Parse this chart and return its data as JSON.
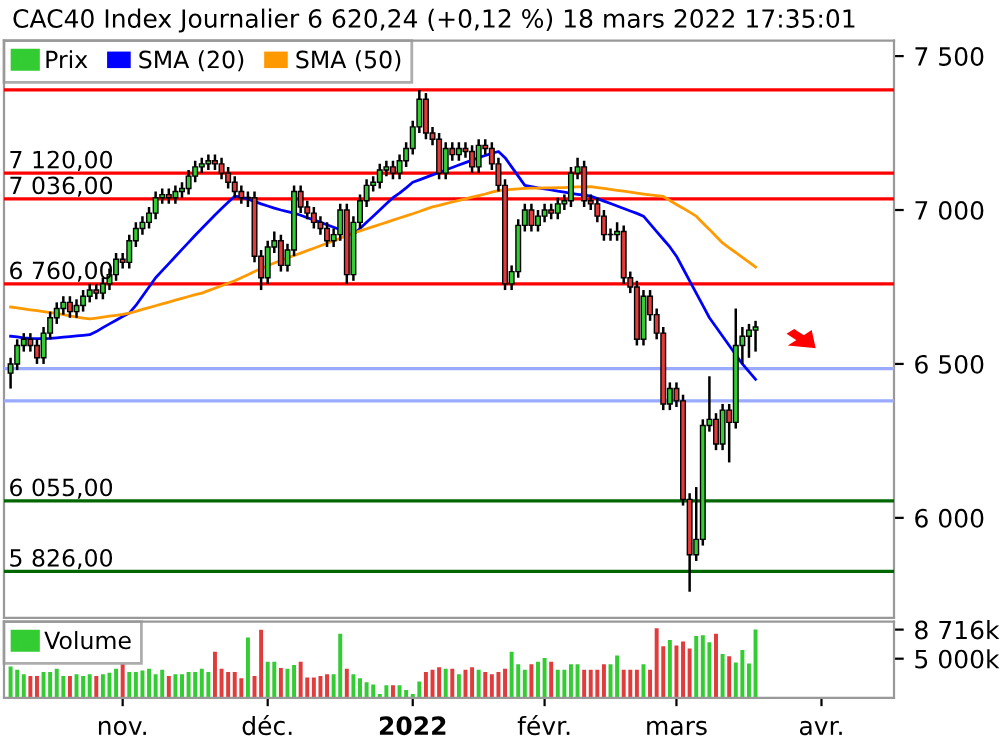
{
  "chart_data": [
    {
      "type": "candlestick",
      "title": "CAC40 Index Journalier 6 620,24 (+0,12 %) 18 mars 2022 17:35:01",
      "categories": [
        null,
        null,
        null,
        null,
        null,
        null,
        null,
        null,
        null,
        null,
        null,
        null,
        null,
        null,
        null,
        null,
        null,
        null,
        null,
        null,
        null,
        null,
        null,
        null,
        null,
        null,
        null,
        null,
        null,
        null,
        null,
        null,
        null,
        null,
        null,
        null,
        null,
        null,
        null,
        null,
        null,
        null,
        null,
        null,
        null,
        null,
        null,
        null,
        null,
        null,
        null,
        null,
        null,
        null,
        null,
        null,
        null,
        null,
        null,
        null,
        null,
        null,
        null,
        null,
        null,
        null,
        null,
        null,
        null,
        null,
        null,
        null,
        null,
        null,
        null,
        null,
        null,
        null,
        null,
        null,
        null,
        null,
        null,
        null,
        null,
        null,
        null,
        null,
        null,
        null,
        null,
        null,
        null,
        null,
        null,
        null,
        null,
        null,
        null,
        null,
        null,
        null,
        null,
        null,
        null,
        null,
        null,
        null,
        null,
        null,
        null,
        null,
        null,
        null,
        null,
        null,
        null,
        null,
        null,
        null,
        null,
        null,
        null,
        null,
        null,
        null,
        null,
        null,
        null,
        null,
        null,
        null,
        null,
        null
      ],
      "tick_labels": "y",
      "legend": "top left",
      "ylim": [
        5675,
        7550
      ],
      "yticks": [
        {
          "value": 6000,
          "label": "6 000"
        },
        {
          "value": 6500,
          "label": "6 500"
        },
        {
          "value": 7000,
          "label": "7 000"
        },
        {
          "value": 7500,
          "label": "7 500"
        }
      ],
      "ref_lines": [
        {
          "axis": "y",
          "value": 7390,
          "color": "#ff0000"
        },
        {
          "axis": "y",
          "value": 7120,
          "label": "7 120,00",
          "color": "#ff0000"
        },
        {
          "axis": "y",
          "value": 7036,
          "label": "7 036,00",
          "color": "#ff0000"
        },
        {
          "axis": "y",
          "value": 6760,
          "label": "6 760,00",
          "color": "#ff0000"
        },
        {
          "axis": "y",
          "value": 6055,
          "label": "6 055,00",
          "color": "#006600"
        },
        {
          "axis": "y",
          "value": 5826,
          "label": "5 826,00",
          "color": "#006600"
        },
        {
          "axis": "y",
          "value": 6485,
          "color": "#99aaff"
        },
        {
          "axis": "y",
          "value": 6380,
          "color": "#99aaff"
        }
      ],
      "series": [
        {
          "name": "Prix",
          "type": "candlestick",
          "colors": [
            "#33cc33",
            "#33cc33",
            "#33cc33",
            "#e23b3b",
            "#e23b3b",
            "#33cc33",
            "#33cc33",
            "#33cc33",
            "#33cc33",
            "#e23b3b",
            "#33cc33",
            "#33cc33",
            "#33cc33",
            "#e23b3b",
            "#33cc33",
            "#33cc33",
            "#33cc33",
            "#e23b3b",
            "#33cc33",
            "#33cc33",
            "#33cc33",
            "#33cc33",
            "#33cc33",
            "#33cc33",
            "#e23b3b",
            "#33cc33",
            "#33cc33",
            "#33cc33",
            "#33cc33",
            "#33cc33",
            "#33cc33",
            "#e23b3b",
            "#e23b3b",
            "#e23b3b",
            "#e23b3b",
            "#e23b3b",
            "#33cc33",
            "#e23b3b",
            "#e23b3b",
            "#33cc33",
            "#33cc33",
            "#e23b3b",
            "#33cc33",
            "#33cc33",
            "#e23b3b",
            "#e23b3b",
            "#e23b3b",
            "#e23b3b",
            "#e23b3b",
            "#33cc33",
            "#33cc33",
            "#e23b3b",
            "#33cc33",
            "#33cc33",
            "#33cc33",
            "#33cc33",
            "#33cc33",
            "#33cc33",
            "#e23b3b",
            "#33cc33",
            "#33cc33",
            "#33cc33",
            "#33cc33",
            "#e23b3b",
            "#e23b3b",
            "#e23b3b",
            "#33cc33",
            "#e23b3b",
            "#33cc33",
            "#e23b3b",
            "#e23b3b",
            "#33cc33",
            "#e23b3b",
            "#e23b3b",
            "#e23b3b",
            "#e23b3b",
            "#33cc33",
            "#33cc33",
            "#33cc33",
            "#e23b3b",
            "#33cc33",
            "#33cc33",
            "#e23b3b",
            "#33cc33",
            "#33cc33",
            "#33cc33",
            "#33cc33",
            "#e23b3b",
            "#e23b3b",
            "#e23b3b",
            "#e23b3b",
            "#33cc33",
            "#33cc33",
            "#e23b3b",
            "#e23b3b",
            "#e23b3b",
            "#33cc33",
            "#e23b3b",
            "#e23b3b",
            "#e23b3b",
            "#33cc33",
            "#e23b3b",
            "#e23b3b",
            "#e23b3b",
            "#33cc33",
            "#33cc33",
            "#33cc33",
            "#e23b3b",
            "#33cc33",
            "#e23b3b",
            "#33cc33",
            "#33cc33",
            "#33cc33",
            "#33cc33",
            null,
            null,
            null,
            null,
            null,
            null,
            null,
            null,
            null,
            null,
            null,
            null,
            null,
            null,
            null,
            null,
            null,
            null,
            null,
            null
          ],
          "ohlc": [
            [
              6470,
              6520,
              6420,
              6500
            ],
            [
              6500,
              6580,
              6480,
              6560
            ],
            [
              6560,
              6600,
              6540,
              6580
            ],
            [
              6580,
              6600,
              6540,
              6560
            ],
            [
              6560,
              6580,
              6500,
              6520
            ],
            [
              6520,
              6620,
              6500,
              6600
            ],
            [
              6600,
              6670,
              6580,
              6650
            ],
            [
              6650,
              6700,
              6630,
              6680
            ],
            [
              6680,
              6720,
              6660,
              6700
            ],
            [
              6700,
              6720,
              6650,
              6670
            ],
            [
              6670,
              6710,
              6650,
              6690
            ],
            [
              6690,
              6740,
              6670,
              6720
            ],
            [
              6720,
              6760,
              6700,
              6740
            ],
            [
              6740,
              6760,
              6710,
              6730
            ],
            [
              6730,
              6780,
              6710,
              6760
            ],
            [
              6760,
              6810,
              6740,
              6790
            ],
            [
              6790,
              6860,
              6770,
              6840
            ],
            [
              6840,
              6860,
              6810,
              6830
            ],
            [
              6830,
              6920,
              6810,
              6900
            ],
            [
              6900,
              6960,
              6880,
              6940
            ],
            [
              6940,
              6980,
              6920,
              6960
            ],
            [
              6960,
              7010,
              6940,
              6990
            ],
            [
              6990,
              7060,
              6970,
              7040
            ],
            [
              7040,
              7070,
              7020,
              7050
            ],
            [
              7050,
              7070,
              7020,
              7040
            ],
            [
              7040,
              7080,
              7020,
              7060
            ],
            [
              7060,
              7090,
              7040,
              7070
            ],
            [
              7070,
              7130,
              7050,
              7110
            ],
            [
              7110,
              7160,
              7090,
              7140
            ],
            [
              7140,
              7170,
              7120,
              7150
            ],
            [
              7150,
              7180,
              7130,
              7160
            ],
            [
              7160,
              7180,
              7130,
              7150
            ],
            [
              7150,
              7170,
              7100,
              7120
            ],
            [
              7120,
              7140,
              7070,
              7090
            ],
            [
              7090,
              7110,
              7040,
              7060
            ],
            [
              7060,
              7080,
              7020,
              7040
            ],
            [
              7040,
              7060,
              7010,
              7040
            ],
            [
              7040,
              7060,
              6830,
              6850
            ],
            [
              6850,
              6870,
              6740,
              6780
            ],
            [
              6780,
              6900,
              6760,
              6880
            ],
            [
              6880,
              6930,
              6860,
              6900
            ],
            [
              6900,
              6920,
              6800,
              6820
            ],
            [
              6820,
              6890,
              6800,
              6870
            ],
            [
              6870,
              7080,
              6850,
              7060
            ],
            [
              7060,
              7080,
              6990,
              7010
            ],
            [
              7010,
              7030,
              6970,
              6990
            ],
            [
              6990,
              7010,
              6940,
              6960
            ],
            [
              6960,
              6980,
              6920,
              6940
            ],
            [
              6940,
              6960,
              6880,
              6900
            ],
            [
              6900,
              6940,
              6880,
              6920
            ],
            [
              6920,
              7020,
              6900,
              7000
            ],
            [
              7000,
              7020,
              6760,
              6790
            ],
            [
              6790,
              6980,
              6770,
              6960
            ],
            [
              6960,
              7050,
              6940,
              7030
            ],
            [
              7030,
              7100,
              7010,
              7080
            ],
            [
              7080,
              7110,
              7060,
              7090
            ],
            [
              7090,
              7150,
              7070,
              7130
            ],
            [
              7130,
              7160,
              7110,
              7140
            ],
            [
              7140,
              7160,
              7100,
              7120
            ],
            [
              7120,
              7180,
              7100,
              7160
            ],
            [
              7160,
              7220,
              7140,
              7200
            ],
            [
              7200,
              7290,
              7180,
              7270
            ],
            [
              7270,
              7390,
              7250,
              7360
            ],
            [
              7360,
              7380,
              7230,
              7250
            ],
            [
              7250,
              7270,
              7210,
              7230
            ],
            [
              7230,
              7250,
              7100,
              7120
            ],
            [
              7120,
              7220,
              7100,
              7200
            ],
            [
              7200,
              7220,
              7160,
              7180
            ],
            [
              7180,
              7220,
              7160,
              7200
            ],
            [
              7200,
              7220,
              7170,
              7190
            ],
            [
              7190,
              7210,
              7120,
              7140
            ],
            [
              7140,
              7230,
              7120,
              7210
            ],
            [
              7210,
              7230,
              7180,
              7200
            ],
            [
              7200,
              7220,
              7130,
              7150
            ],
            [
              7150,
              7170,
              7060,
              7080
            ],
            [
              7080,
              7100,
              6740,
              6760
            ],
            [
              6760,
              6820,
              6740,
              6800
            ],
            [
              6800,
              6970,
              6780,
              6950
            ],
            [
              6950,
              7020,
              6930,
              7000
            ],
            [
              7000,
              7020,
              6930,
              6950
            ],
            [
              6950,
              7000,
              6930,
              6980
            ],
            [
              6980,
              7020,
              6960,
              7000
            ],
            [
              7000,
              7020,
              6970,
              6990
            ],
            [
              6990,
              7040,
              6970,
              7020
            ],
            [
              7020,
              7050,
              7000,
              7030
            ],
            [
              7030,
              7140,
              7010,
              7120
            ],
            [
              7120,
              7170,
              7100,
              7140
            ],
            [
              7140,
              7160,
              7010,
              7030
            ],
            [
              7030,
              7050,
              7000,
              7020
            ],
            [
              7020,
              7040,
              6960,
              6980
            ],
            [
              6980,
              7000,
              6900,
              6920
            ],
            [
              6920,
              6940,
              6900,
              6920
            ],
            [
              6920,
              6960,
              6900,
              6930
            ],
            [
              6930,
              6950,
              6760,
              6780
            ],
            [
              6780,
              6800,
              6730,
              6750
            ],
            [
              6750,
              6770,
              6560,
              6580
            ],
            [
              6580,
              6740,
              6560,
              6720
            ],
            [
              6720,
              6740,
              6640,
              6660
            ],
            [
              6660,
              6680,
              6580,
              6600
            ],
            [
              6600,
              6620,
              6350,
              6370
            ],
            [
              6370,
              6440,
              6350,
              6420
            ],
            [
              6420,
              6440,
              6360,
              6380
            ],
            [
              6380,
              6400,
              6040,
              6060
            ],
            [
              6060,
              6080,
              5760,
              5880
            ],
            [
              5880,
              6100,
              5860,
              5930
            ],
            [
              5930,
              6320,
              5910,
              6300
            ],
            [
              6300,
              6460,
              6280,
              6320
            ],
            [
              6320,
              6340,
              6220,
              6240
            ],
            [
              6240,
              6370,
              6220,
              6350
            ],
            [
              6350,
              6370,
              6180,
              6310
            ],
            [
              6310,
              6680,
              6290,
              6560
            ],
            [
              6560,
              6620,
              6500,
              6590
            ],
            [
              6590,
              6630,
              6520,
              6610
            ],
            [
              6610,
              6640,
              6540,
              6620
            ],
            null,
            null,
            null,
            null,
            null,
            null,
            null,
            null,
            null,
            null,
            null,
            null,
            null,
            null,
            null,
            null,
            null,
            null,
            null,
            null
          ]
        },
        {
          "name": "SMA (20)",
          "type": "line",
          "color": "#0000ff",
          "values": [
            6590,
            6588,
            6585,
            6583,
            6582,
            6582,
            6583,
            6585,
            6587,
            6589,
            6591,
            6593,
            6595,
            6605,
            6618,
            6630,
            6642,
            6654,
            6665,
            6690,
            6720,
            6750,
            6780,
            6803,
            6826,
            6849,
            6872,
            6895,
            6918,
            6940,
            6962,
            6984,
            7005,
            7025,
            7045,
            7042,
            7035,
            7028,
            7020,
            7013,
            7006,
            7000,
            6995,
            6990,
            6983,
            6975,
            6968,
            6960,
            6952,
            6944,
            6936,
            null,
            6920,
            6940,
            6960,
            6980,
            7000,
            7020,
            7040,
            7055,
            7072,
            7090,
            7098,
            7106,
            7114,
            7122,
            7130,
            7138,
            7146,
            7154,
            7162,
            7170,
            7177,
            7184,
            7190,
            7170,
            7140,
            7110,
            7080,
            7076,
            7072,
            7069,
            7065,
            7061,
            7058,
            7054,
            7051,
            7048,
            7045,
            7037,
            7029,
            7021,
            7013,
            7005,
            6997,
            6989,
            6980,
            6955,
            6930,
            6905,
            6880,
            6850,
            6810,
            6770,
            6730,
            6690,
            6650,
            6620,
            6590,
            6560,
            6530,
            6500,
            6475,
            6450,
            null,
            null,
            null,
            null,
            null,
            null,
            null,
            null,
            null,
            null,
            null,
            null,
            null,
            null,
            null,
            null,
            null,
            null,
            null,
            null
          ]
        },
        {
          "name": "SMA (50)",
          "type": "line",
          "color": "#ff9900",
          "values": [
            6685,
            6682,
            6679,
            6676,
            6673,
            6670,
            6667,
            6664,
            6660,
            6656,
            6652,
            6649,
            6646,
            6649,
            6652,
            6655,
            6658,
            6661,
            6665,
            6671,
            6677,
            6683,
            6689,
            6695,
            6701,
            6707,
            6713,
            6719,
            6725,
            6730,
            6738,
            6746,
            6754,
            6762,
            6770,
            6780,
            6790,
            6800,
            6810,
            6819,
            6828,
            6836,
            6844,
            6852,
            6860,
            6868,
            6876,
            6884,
            6892,
            6900,
            6908,
            6917,
            6925,
            6932,
            6939,
            6946,
            6953,
            6960,
            6967,
            6974,
            6981,
            6988,
            6995,
            7003,
            7010,
            7015,
            7021,
            7026,
            7031,
            7036,
            7042,
            7047,
            7052,
            7058,
            7063,
            7065,
            7067,
            7069,
            7070,
            7071,
            7071,
            7072,
            7072,
            7073,
            7073,
            7074,
            7075,
            7075,
            7076,
            7073,
            7070,
            7067,
            7064,
            7061,
            7058,
            7055,
            7052,
            7049,
            7047,
            7044,
            7031,
            7018,
            7006,
            6993,
            6980,
            6958,
            6937,
            6915,
            6893,
            6877,
            6862,
            6846,
            6831,
            6815,
            null,
            null,
            null,
            null,
            null,
            null,
            null,
            null,
            null,
            null,
            null,
            null,
            null,
            null,
            null,
            null,
            null,
            null,
            null,
            null
          ]
        }
      ]
    },
    {
      "type": "bar",
      "legend": "top left",
      "categories": [
        null,
        null,
        null,
        null,
        null,
        null,
        null,
        null,
        null,
        null,
        null,
        null,
        null,
        null,
        null,
        null,
        null,
        "nov.",
        null,
        null,
        null,
        null,
        null,
        null,
        null,
        null,
        null,
        null,
        null,
        null,
        null,
        null,
        null,
        null,
        null,
        null,
        null,
        null,
        null,
        "déc.",
        null,
        null,
        null,
        null,
        null,
        null,
        null,
        null,
        null,
        null,
        null,
        null,
        null,
        null,
        null,
        null,
        null,
        null,
        null,
        null,
        null,
        "2022",
        null,
        null,
        null,
        null,
        null,
        null,
        null,
        null,
        null,
        null,
        null,
        null,
        null,
        null,
        null,
        null,
        null,
        null,
        null,
        "févr.",
        null,
        null,
        null,
        null,
        null,
        null,
        null,
        null,
        null,
        null,
        null,
        null,
        null,
        null,
        null,
        null,
        null,
        null,
        null,
        "mars",
        null,
        null,
        null,
        null,
        null,
        null,
        null,
        null,
        null,
        null,
        null,
        null,
        null,
        null,
        null,
        null,
        null,
        null,
        null,
        null,
        null,
        "avr.",
        null,
        null,
        null,
        null,
        null,
        null,
        null,
        null,
        null,
        null
      ],
      "ylim": [
        0,
        9740
      ],
      "yticks": [
        {
          "value": 5000,
          "label": "5 000k"
        },
        {
          "value": 8716,
          "label": "8 716k"
        }
      ],
      "series": [
        {
          "name": "Volume",
          "colors": [
            "#33cc33",
            "#33cc33",
            "#33cc33",
            "#e23b3b",
            "#e23b3b",
            "#33cc33",
            "#33cc33",
            "#33cc33",
            "#33cc33",
            "#e23b3b",
            "#33cc33",
            "#33cc33",
            "#33cc33",
            "#e23b3b",
            "#33cc33",
            "#33cc33",
            "#33cc33",
            "#e23b3b",
            "#33cc33",
            "#33cc33",
            "#33cc33",
            "#33cc33",
            "#33cc33",
            "#33cc33",
            "#e23b3b",
            "#33cc33",
            "#33cc33",
            "#33cc33",
            "#33cc33",
            "#33cc33",
            "#33cc33",
            "#e23b3b",
            "#e23b3b",
            "#e23b3b",
            "#e23b3b",
            "#e23b3b",
            "#33cc33",
            "#e23b3b",
            "#e23b3b",
            "#33cc33",
            "#33cc33",
            "#e23b3b",
            "#33cc33",
            "#33cc33",
            "#e23b3b",
            "#e23b3b",
            "#e23b3b",
            "#e23b3b",
            "#e23b3b",
            "#33cc33",
            "#33cc33",
            "#e23b3b",
            "#33cc33",
            "#33cc33",
            "#33cc33",
            "#33cc33",
            "#33cc33",
            "#33cc33",
            "#e23b3b",
            "#33cc33",
            "#33cc33",
            "#33cc33",
            "#33cc33",
            "#e23b3b",
            "#e23b3b",
            "#e23b3b",
            "#33cc33",
            "#e23b3b",
            "#33cc33",
            "#e23b3b",
            "#e23b3b",
            "#33cc33",
            "#e23b3b",
            "#e23b3b",
            "#e23b3b",
            "#e23b3b",
            "#33cc33",
            "#33cc33",
            "#33cc33",
            "#e23b3b",
            "#33cc33",
            "#33cc33",
            "#e23b3b",
            "#33cc33",
            "#33cc33",
            "#33cc33",
            "#33cc33",
            "#e23b3b",
            "#e23b3b",
            "#e23b3b",
            "#e23b3b",
            "#33cc33",
            "#33cc33",
            "#e23b3b",
            "#e23b3b",
            "#e23b3b",
            "#33cc33",
            "#e23b3b",
            "#e23b3b",
            "#e23b3b",
            "#33cc33",
            "#e23b3b",
            "#e23b3b",
            "#e23b3b",
            "#33cc33",
            "#33cc33",
            "#33cc33",
            "#e23b3b",
            "#33cc33",
            "#e23b3b",
            "#33cc33",
            "#33cc33",
            "#33cc33",
            "#33cc33",
            null,
            null,
            null,
            null,
            null,
            null,
            null,
            null,
            null,
            null,
            null,
            null,
            null,
            null,
            null,
            null,
            null,
            null,
            null,
            null
          ],
          "values": [
            4000,
            3600,
            3000,
            2800,
            2800,
            3300,
            3300,
            3700,
            2800,
            2800,
            3000,
            2800,
            3000,
            2800,
            3000,
            3200,
            3700,
            4300,
            3300,
            3300,
            3500,
            3700,
            3000,
            3600,
            2800,
            3000,
            3000,
            3300,
            3300,
            3700,
            3300,
            5900,
            3700,
            3300,
            3300,
            2500,
            7700,
            2800,
            8700,
            4600,
            4600,
            3800,
            3700,
            4200,
            4600,
            2600,
            2600,
            2800,
            3000,
            3000,
            8200,
            3700,
            3000,
            2500,
            2000,
            1700,
            500,
            1600,
            1600,
            1600,
            1000,
            500,
            2100,
            3300,
            3600,
            3900,
            3700,
            3700,
            3000,
            3600,
            3900,
            3600,
            3300,
            3000,
            3300,
            3700,
            5900,
            4300,
            3600,
            4300,
            4600,
            5100,
            4600,
            3600,
            3600,
            4300,
            4300,
            3600,
            3600,
            3600,
            4300,
            4300,
            5400,
            3600,
            3600,
            3600,
            4300,
            3600,
            8900,
            6600,
            7400,
            6700,
            7200,
            6300,
            7900,
            8000,
            7100,
            8200,
            5600,
            5300,
            4500,
            6100,
            4400,
            8716,
            null,
            null,
            null,
            null,
            null,
            null,
            null,
            null,
            null,
            null,
            null,
            null,
            null,
            null,
            null,
            null,
            null,
            null,
            null,
            null
          ]
        }
      ]
    }
  ]
}
